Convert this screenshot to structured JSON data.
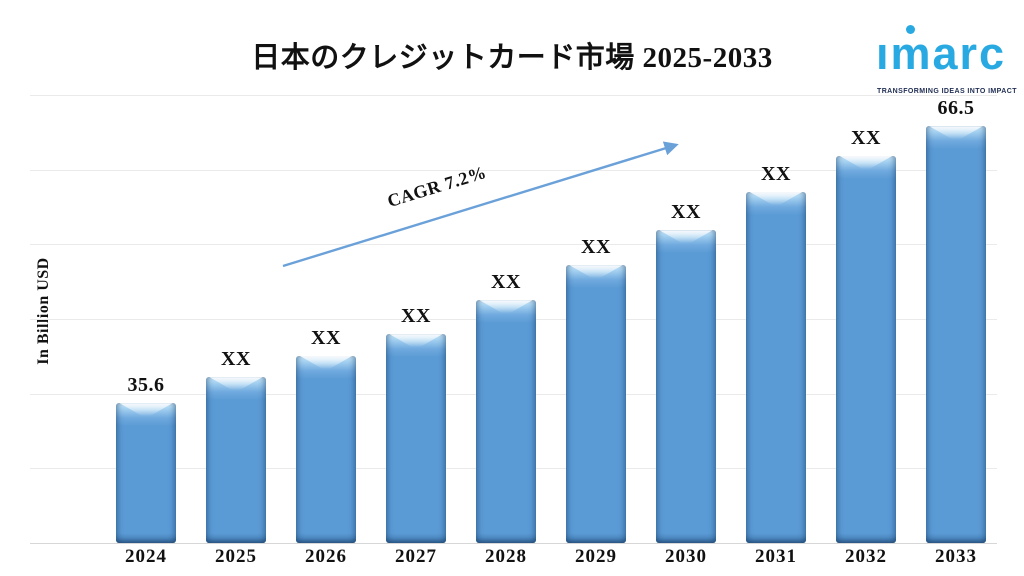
{
  "title": "日本のクレジットカード市場 2025-2033",
  "logo": {
    "brand": "imarc",
    "brand_display": "ımarc",
    "tagline": "TRANSFORMING IDEAS INTO IMPACT",
    "brand_color": "#29a9e1",
    "tagline_color": "#1f2d53"
  },
  "chart_data": {
    "type": "bar",
    "title": "日本のクレジットカード市場 2025-2033",
    "xlabel": "",
    "ylabel": "In Billion USD",
    "unit": "Billion USD",
    "categories": [
      "2024",
      "2025",
      "2026",
      "2027",
      "2028",
      "2029",
      "2030",
      "2031",
      "2032",
      "2033"
    ],
    "values": [
      35.6,
      38.5,
      40.9,
      43.3,
      47.1,
      51.0,
      54.9,
      59.2,
      63.2,
      66.5
    ],
    "value_labels": [
      "35.6",
      "XX",
      "XX",
      "XX",
      "XX",
      "XX",
      "XX",
      "XX",
      "XX",
      "66.5"
    ],
    "annotation": {
      "text": "CAGR 7.2%"
    },
    "axis": {
      "y_min": 20,
      "y_max": 70,
      "gridline_count": 7,
      "grid": true,
      "tick_labels_visible": false
    },
    "legend": {
      "visible": false
    },
    "colors": {
      "bar": "#5b9bd5",
      "bar_highlight": "#d7effd",
      "bar_edge": "#457cb1",
      "gridline": "#eaeaea",
      "baseline": "#d7d7d7",
      "arrow": "#6ba1d9",
      "text": "#111111",
      "background": "#ffffff"
    }
  }
}
